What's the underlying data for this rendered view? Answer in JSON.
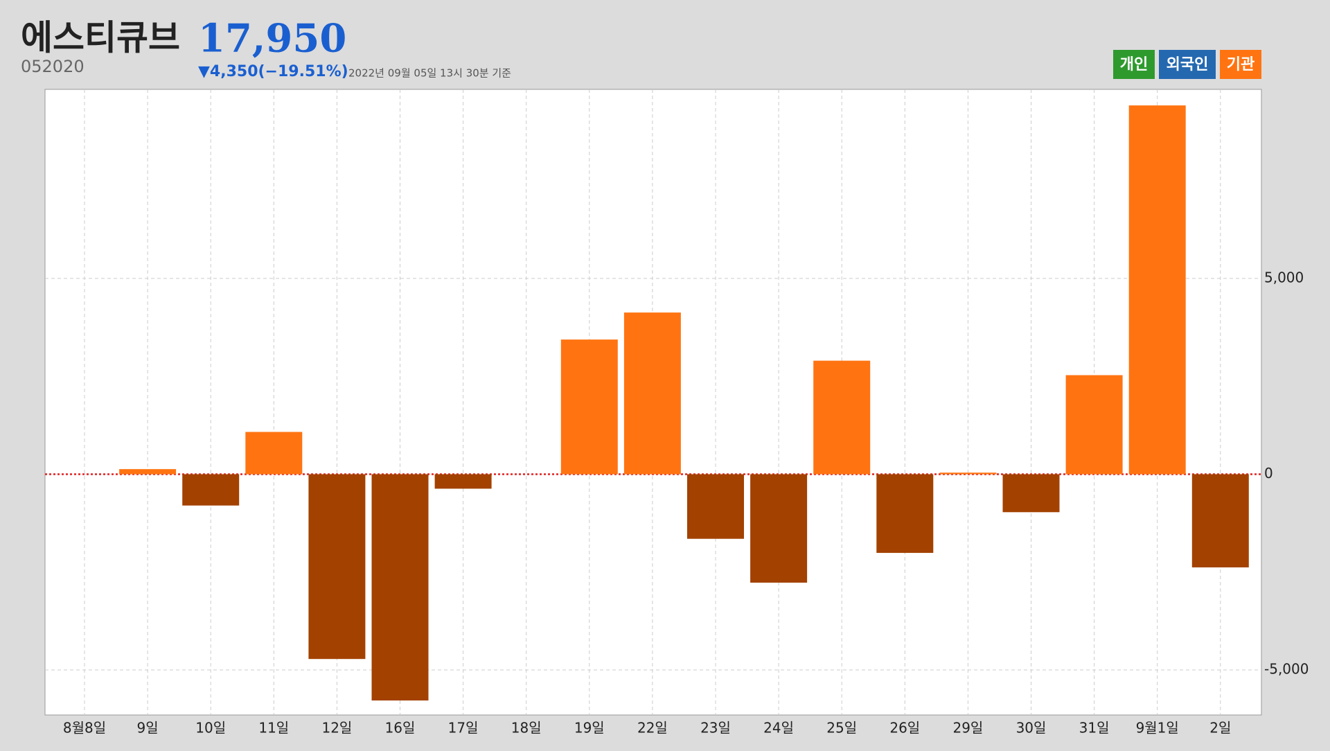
{
  "chart_data": {
    "type": "bar",
    "title": "에스티큐브",
    "price": "17,950",
    "code": "052020",
    "change": "▼4,350(−19.51%)",
    "timestamp": "2022년 09월 05일 13시 30분 기준",
    "legend": [
      {
        "name": "개인",
        "color": "#2e9a2e"
      },
      {
        "name": "외국인",
        "color": "#2468b0"
      },
      {
        "name": "기관",
        "color": "#ff7411"
      }
    ],
    "categories": [
      "8월8일",
      "9일",
      "10일",
      "11일",
      "12일",
      "16일",
      "17일",
      "18일",
      "19일",
      "22일",
      "23일",
      "24일",
      "25일",
      "26일",
      "29일",
      "30일",
      "31일",
      "9월1일",
      "2일"
    ],
    "values": [
      0,
      130,
      -800,
      1080,
      -4720,
      -5780,
      -370,
      0,
      3440,
      4130,
      -1650,
      -2770,
      2900,
      -2010,
      40,
      -970,
      2530,
      9420,
      -2380
    ],
    "color_positive": "#ff7411",
    "color_negative": "#a34100",
    "zero_line_color": "#e02020",
    "ylim": [
      -6150,
      9830
    ],
    "yticks": [
      {
        "value": -5000,
        "label": "-5,000"
      },
      0,
      {
        "value": 5000,
        "label": "5,000"
      }
    ],
    "grid": true
  }
}
